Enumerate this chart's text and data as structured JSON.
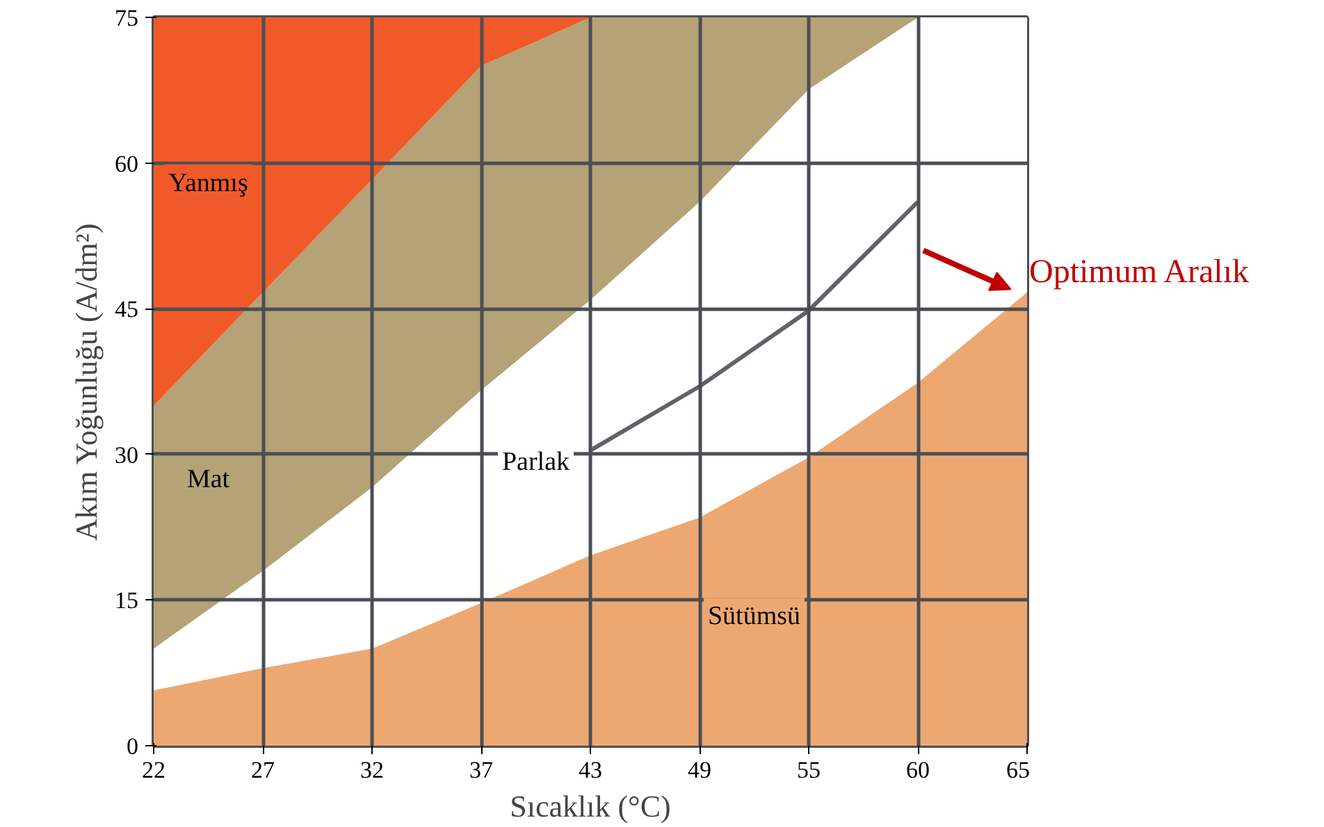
{
  "chart_data": {
    "type": "area",
    "stacked": true,
    "xlabel": "Sıcaklık (°C)",
    "ylabel": "Akım Yoğunluğu (A/dm²)",
    "categories": [
      "22",
      "27",
      "32",
      "37",
      "43",
      "49",
      "55",
      "60",
      "65"
    ],
    "ylim": [
      0,
      75
    ],
    "yticks": [
      0,
      15,
      30,
      45,
      60,
      75
    ],
    "grid": true,
    "series": [
      {
        "name": "Sütümsü",
        "color": "#eda872",
        "values": [
          5.7,
          8,
          10,
          14.7,
          19.6,
          23.5,
          29.7,
          37.4,
          46.7
        ]
      },
      {
        "name": "Parlak",
        "color": "#ffffff",
        "values": [
          4.3,
          10,
          16.6,
          21.9,
          26.3,
          32.5,
          37.9,
          37.6,
          28.3
        ]
      },
      {
        "name": "Mat",
        "color": "#b5a276",
        "values": [
          25,
          28.7,
          31.7,
          33.4,
          29.1,
          19,
          7.4,
          0,
          0
        ]
      },
      {
        "name": "Yanmış",
        "color": "#f05a28",
        "values": [
          40,
          28.3,
          16.7,
          5,
          0,
          0,
          0,
          0,
          0
        ]
      },
      {
        "name": "Optimum Aralık",
        "type": "line",
        "color": "#5f6368",
        "x": [
          "43",
          "49",
          "55",
          "60"
        ],
        "values": [
          30.4,
          37,
          44.8,
          56
        ]
      }
    ]
  }
}
